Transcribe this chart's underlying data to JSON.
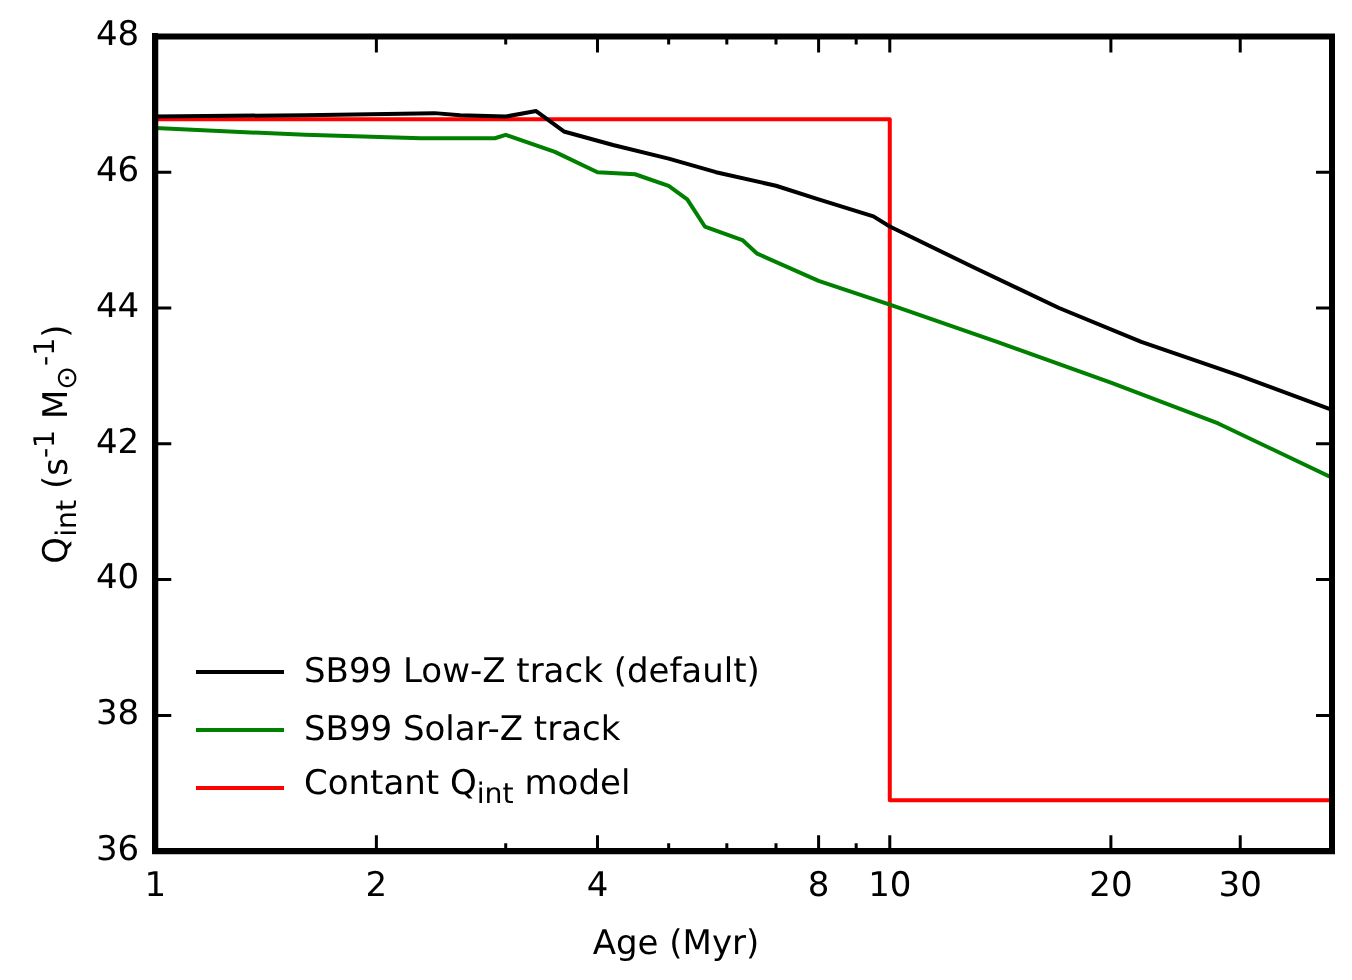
{
  "chart_data": {
    "type": "line",
    "xlabel": "Age (Myr)",
    "ylabel": "Q$_{int}$ (s$^{-1}$ M$_{⊙}$$^{-1}$)",
    "log": "x",
    "xlim": [
      1,
      40
    ],
    "ylim": [
      36,
      48
    ],
    "xticks": [
      1,
      2,
      {
        "value": 3,
        "label": null
      },
      4,
      {
        "value": 5,
        "label": null
      },
      {
        "value": 6,
        "label": null
      },
      {
        "value": 7,
        "label": null
      },
      8,
      {
        "value": 9,
        "label": null
      },
      10,
      20,
      30
    ],
    "yticks": [
      36,
      38,
      40,
      42,
      44,
      46,
      48
    ],
    "grid": false,
    "legend": "bottom left",
    "marker": "none",
    "line_style": "solid",
    "series": [
      {
        "name": "SB99 Low-Z track (default)",
        "color": "#000000",
        "x": [
          1,
          1.6,
          2.4,
          2.6,
          3.0,
          3.3,
          3.6,
          4.2,
          5.0,
          5.8,
          7,
          8,
          9.5,
          10,
          13,
          17,
          22,
          30,
          40
        ],
        "values": [
          46.82,
          46.84,
          46.87,
          46.84,
          46.82,
          46.9,
          46.6,
          46.4,
          46.2,
          46.0,
          45.8,
          45.6,
          45.35,
          45.2,
          44.6,
          44.0,
          43.5,
          43.0,
          42.5
        ]
      },
      {
        "name": "SB99 Solar-Z track",
        "color": "#008000",
        "x": [
          1,
          1.6,
          2.3,
          2.9,
          3.0,
          3.5,
          4.0,
          4.5,
          5.0,
          5.3,
          5.6,
          6.3,
          6.6,
          8,
          10,
          14,
          20,
          28,
          40
        ],
        "values": [
          46.65,
          46.55,
          46.5,
          46.5,
          46.55,
          46.3,
          46.0,
          45.97,
          45.8,
          45.6,
          45.2,
          45.0,
          44.8,
          44.4,
          44.05,
          43.5,
          42.9,
          42.3,
          41.5
        ]
      },
      {
        "name": "Contant Q$_{int}$ model",
        "color": "#ff0000",
        "x": [
          1,
          10,
          10,
          40
        ],
        "values": [
          46.78,
          46.78,
          36.75,
          36.75
        ]
      }
    ]
  }
}
